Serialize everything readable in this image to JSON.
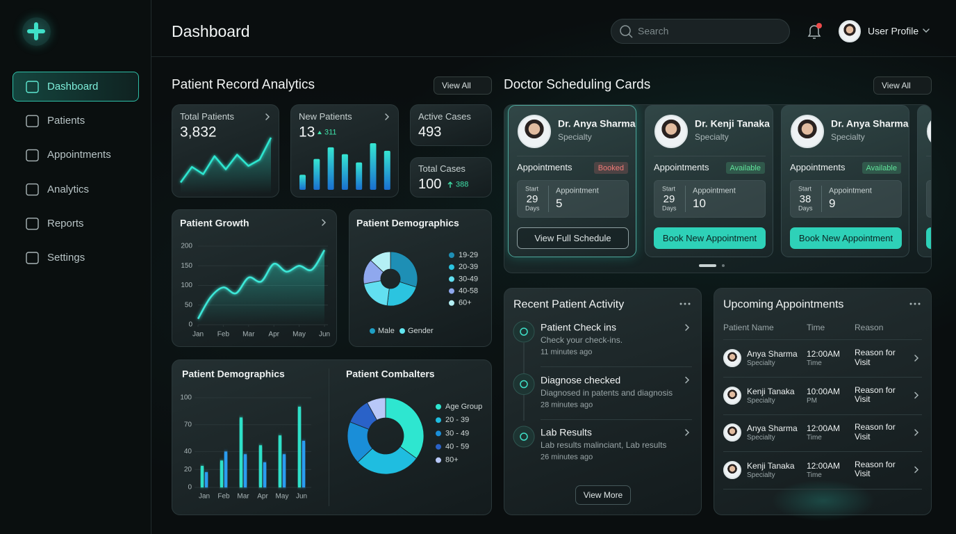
{
  "sidebar": {
    "nav": [
      "Dashboard",
      "Patients",
      "Appointments",
      "Analytics",
      "Reports",
      "Settings"
    ]
  },
  "header": {
    "title": "Dashboard",
    "search_placeholder": "Search",
    "user": "User Profile"
  },
  "analytics": {
    "title": "Patient Record Analytics",
    "view_all": "View All",
    "total_patients": {
      "label": "Total Patients",
      "value": "3,832",
      "values": [
        8,
        40,
        25,
        62,
        35,
        65,
        42,
        55,
        100
      ],
      "color": "#2ee6d0"
    },
    "new_patients": {
      "label": "New Patients",
      "value": "13",
      "change": "311",
      "values": [
        22,
        45,
        62,
        52,
        40,
        68,
        57
      ],
      "color": "#2fd8d0"
    },
    "active_cases": {
      "label": "Active Cases",
      "value": "493"
    },
    "total_cases": {
      "label": "Total Cases",
      "value": "100",
      "change": "388"
    }
  },
  "chart_data": [
    {
      "type": "line",
      "title": "Patient Growth",
      "x": [
        0,
        0.5,
        1,
        1.5,
        2,
        2.5,
        3,
        3.5,
        4,
        4.5,
        5
      ],
      "series": [
        {
          "color": "#3ee8d8",
          "values": [
            15,
            70,
            95,
            80,
            120,
            110,
            155,
            135,
            150,
            140,
            190
          ]
        }
      ],
      "xlim": [
        0,
        5
      ],
      "xticks": [
        {
          "value": 0,
          "label": "Jan"
        },
        {
          "value": 1,
          "label": "Feb"
        },
        {
          "value": 2,
          "label": "Mar"
        },
        {
          "value": 3,
          "label": "Apr"
        },
        {
          "value": 4,
          "label": "May"
        },
        {
          "value": 5,
          "label": "Jun"
        }
      ],
      "ylim": [
        0,
        200
      ],
      "yticks": [
        0,
        50,
        100,
        150,
        200
      ],
      "grid": true
    },
    {
      "type": "pie",
      "title": "Patient Demographics",
      "categories": [
        "19-29",
        "20-39",
        "30-49",
        "40-58",
        "60+"
      ],
      "values": [
        30,
        22,
        20,
        15,
        13
      ],
      "colors": [
        "#1e8fb5",
        "#2bc4e0",
        "#62dff0",
        "#8fa8ee",
        "#b4f0f5"
      ],
      "sub_legend": [
        {
          "label": "Male",
          "color": "#1e9fc5"
        },
        {
          "label": "Gender",
          "color": "#62e6f0"
        }
      ]
    },
    {
      "type": "bar",
      "title": "Patient Demographics",
      "categories": [
        "Jan",
        "Feb",
        "Mar",
        "Apr",
        "May",
        "Jun"
      ],
      "series": [
        {
          "color": "#2fe0c8",
          "values": [
            24,
            30,
            78,
            47,
            58,
            90
          ]
        },
        {
          "color": "#2a9cf0",
          "values": [
            17,
            40,
            37,
            28,
            37,
            52
          ]
        }
      ],
      "ylim": [
        0,
        100
      ],
      "yticks": [
        0,
        20,
        40,
        70,
        100
      ],
      "grid": true
    },
    {
      "type": "pie",
      "title": "Patient Combalters",
      "categories": [
        "Age Group",
        "20 - 39",
        "30 - 49",
        "40 - 59",
        "80+"
      ],
      "values": [
        35,
        28,
        18,
        11,
        8
      ],
      "colors": [
        "#2ee6d0",
        "#1fbde0",
        "#1a8ed8",
        "#2a62c8",
        "#b8c8f8"
      ]
    }
  ],
  "doctors": {
    "title": "Doctor Scheduling Cards",
    "view_all": "View All",
    "cards": [
      {
        "name": "Dr. Anya Sharma",
        "specialty": "Specialty",
        "appointments_label": "Appointments",
        "status": "Booked",
        "status_color": "#ef7a76",
        "start_label": "Start",
        "days": "29",
        "days_label": "Days",
        "appointment_label": "Appointment",
        "count": "5",
        "button": "View Full Schedule",
        "button_filled": false
      },
      {
        "name": "Dr. Kenji Tanaka",
        "specialty": "Specialty",
        "appointments_label": "Appointments",
        "status": "Available",
        "status_color": "#5fe39a",
        "start_label": "Start",
        "days": "29",
        "days_label": "Days",
        "appointment_label": "Appointment",
        "count": "10",
        "button": "Book New Appointment",
        "button_filled": true
      },
      {
        "name": "Dr. Anya Sharma",
        "specialty": "Specialty",
        "appointments_label": "Appointments",
        "status": "Available",
        "status_color": "#5fe39a",
        "start_label": "Start",
        "days": "38",
        "days_label": "Days",
        "appointment_label": "Appointment",
        "count": "9",
        "button": "Book New Appointment",
        "button_filled": true
      }
    ]
  },
  "activity": {
    "title": "Recent Patient Activity",
    "items": [
      {
        "title": "Patient Check ins",
        "desc": "Check your check-ins.",
        "time": "11 minutes ago"
      },
      {
        "title": "Diagnose checked",
        "desc": "Diagnosed in patents and diagnosis",
        "time": "28 minutes ago"
      },
      {
        "title": "Lab Results",
        "desc": "Lab results malinciant, Lab results",
        "time": "26 minutes ago"
      }
    ],
    "button": "View More"
  },
  "upcoming": {
    "title": "Upcoming Appointments",
    "columns": [
      "Patient Name",
      "Time",
      "Reason"
    ],
    "rows": [
      {
        "name": "Anya Sharma",
        "specialty": "Specialty",
        "time": "12:00AM",
        "time_sub": "Time",
        "reason": "Reason for Visit"
      },
      {
        "name": "Kenji Tanaka",
        "specialty": "Specialty",
        "time": "10:00AM",
        "time_sub": "PM",
        "reason": "Reason for Visit"
      },
      {
        "name": "Anya Sharma",
        "specialty": "Specialty",
        "time": "12:00AM",
        "time_sub": "Time",
        "reason": "Reason for Visit"
      },
      {
        "name": "Kenji Tanaka",
        "specialty": "Specialty",
        "time": "12:00AM",
        "time_sub": "Time",
        "reason": "Reason for Visit"
      }
    ]
  }
}
